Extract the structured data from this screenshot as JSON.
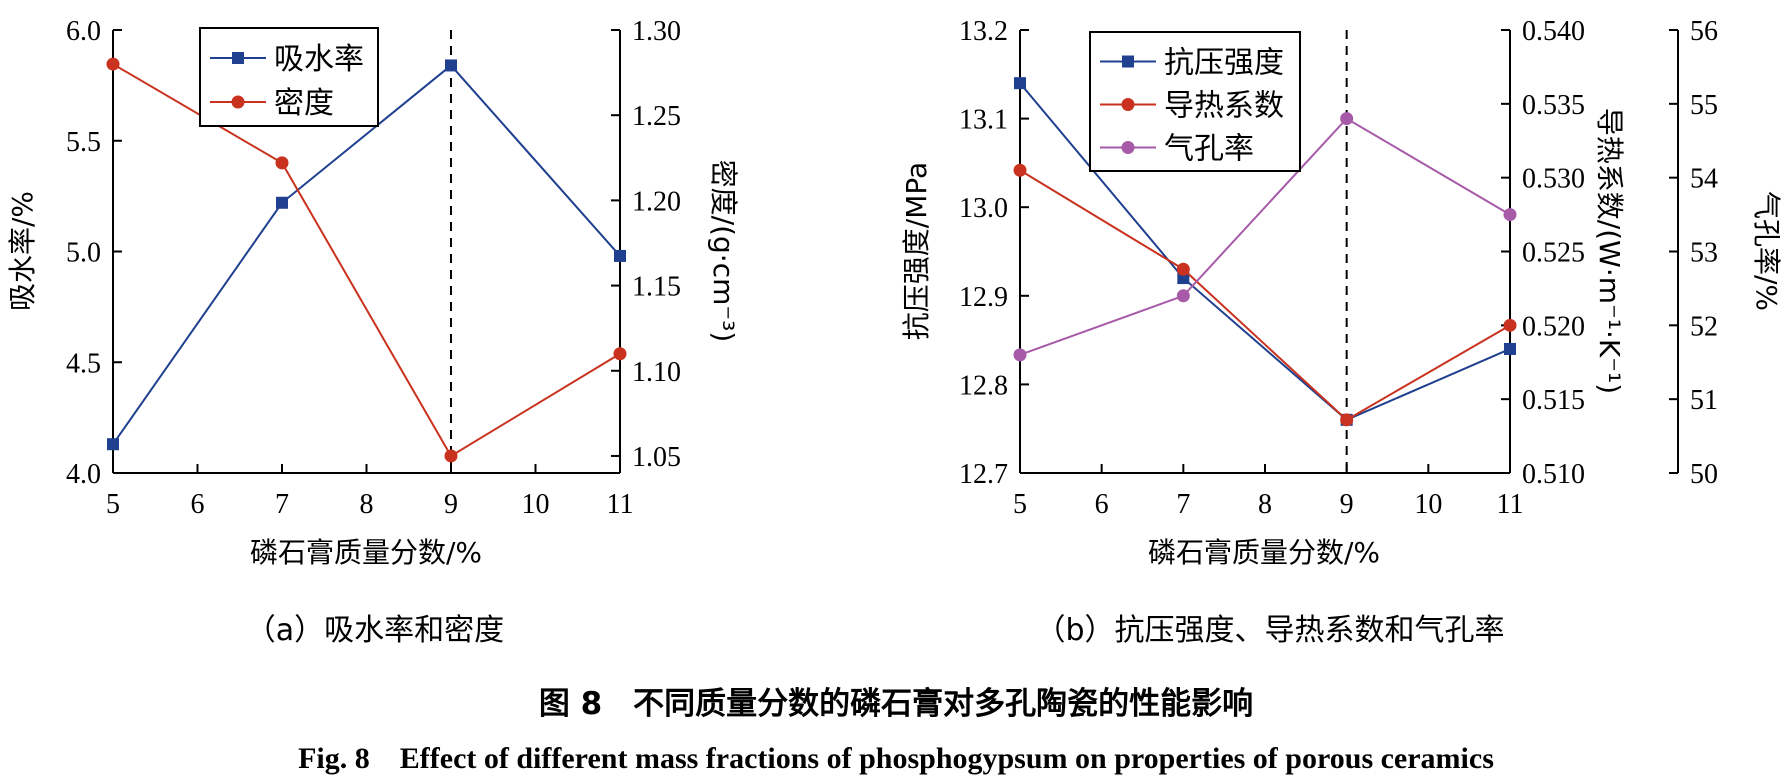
{
  "chart_data": [
    {
      "type": "line",
      "caption": "（a）吸水率和密度",
      "xlabel": "磷石膏质量分数/%",
      "x": [
        5,
        7,
        9,
        11
      ],
      "xlim": [
        5,
        11
      ],
      "xticks": [
        5,
        6,
        7,
        8,
        9,
        10,
        11
      ],
      "reference_line_x": 9,
      "legend_position": "top-left",
      "y_axes": [
        {
          "id": "left",
          "side": "left",
          "label": "吸水率/%",
          "ylim": [
            4.0,
            6.0
          ],
          "ticks": [
            4.0,
            4.5,
            5.0,
            5.5,
            6.0
          ],
          "decimals": 1
        },
        {
          "id": "right",
          "side": "right",
          "label": "密度/(g·cm⁻³)",
          "ylim": [
            1.04,
            1.3
          ],
          "ticks": [
            1.05,
            1.1,
            1.15,
            1.2,
            1.25,
            1.3
          ],
          "decimals": 2
        }
      ],
      "series": [
        {
          "name": "吸水率",
          "axis": "left",
          "marker": "square",
          "color": "#1f3f8f",
          "values": [
            4.13,
            5.22,
            5.84,
            4.98
          ]
        },
        {
          "name": "密度",
          "axis": "right",
          "marker": "circle",
          "color": "#c8321e",
          "values": [
            1.28,
            1.222,
            1.05,
            1.11
          ]
        }
      ]
    },
    {
      "type": "line",
      "caption": "（b）抗压强度、导热系数和气孔率",
      "xlabel": "磷石膏质量分数/%",
      "x": [
        5,
        7,
        9,
        11
      ],
      "xlim": [
        5,
        11
      ],
      "xticks": [
        5,
        6,
        7,
        8,
        9,
        10,
        11
      ],
      "reference_line_x": 9,
      "legend_position": "top-left",
      "y_axes": [
        {
          "id": "left",
          "side": "left",
          "label": "抗压强度/MPa",
          "ylim": [
            12.7,
            13.2
          ],
          "ticks": [
            12.7,
            12.8,
            12.9,
            13.0,
            13.1,
            13.2
          ],
          "decimals": 1
        },
        {
          "id": "right1",
          "side": "right",
          "label": "导热系数/(W·m⁻¹·K⁻¹)",
          "ylim": [
            0.51,
            0.54
          ],
          "ticks": [
            0.51,
            0.515,
            0.52,
            0.525,
            0.53,
            0.535,
            0.54
          ],
          "decimals": 3
        },
        {
          "id": "right2",
          "side": "right-outer",
          "label": "气孔率/%",
          "ylim": [
            50,
            56
          ],
          "ticks": [
            50,
            51,
            52,
            53,
            54,
            55,
            56
          ],
          "decimals": 0
        }
      ],
      "series": [
        {
          "name": "抗压强度",
          "axis": "left",
          "marker": "square",
          "color": "#1f3f8f",
          "values": [
            13.14,
            12.92,
            12.76,
            12.84
          ]
        },
        {
          "name": "导热系数",
          "axis": "right1",
          "marker": "circle",
          "color": "#c8321e",
          "values": [
            0.5305,
            0.5238,
            0.5136,
            0.52
          ]
        },
        {
          "name": "气孔率",
          "axis": "right2",
          "marker": "circle",
          "color": "#a65aa8",
          "values": [
            51.6,
            52.4,
            54.8,
            53.5
          ]
        }
      ]
    }
  ],
  "figure": {
    "title_cn": "图 8　不同质量分数的磷石膏对多孔陶瓷的性能影响",
    "title_en": "Fig. 8　Effect of different mass fractions of phosphogypsum on properties of porous ceramics"
  }
}
